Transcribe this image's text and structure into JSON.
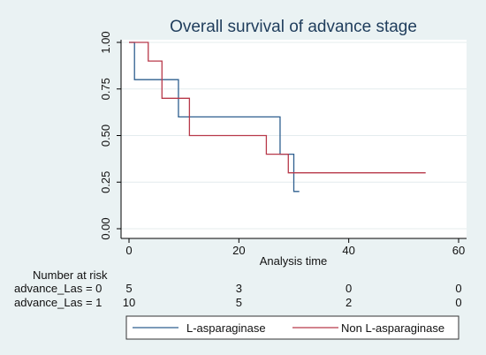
{
  "chart_data": {
    "type": "line",
    "subtype": "kaplan-meier-step",
    "title": "Overall survival of advance stage",
    "xlabel": "Analysis time",
    "ylabel": "",
    "xlim": [
      0,
      60
    ],
    "ylim": [
      0,
      1
    ],
    "x_ticks": [
      0,
      20,
      40,
      60
    ],
    "x_tick_labels": [
      "0",
      "20",
      "40",
      "60"
    ],
    "y_ticks": [
      0,
      0.25,
      0.5,
      0.75,
      1
    ],
    "y_tick_labels": [
      "0.00",
      "0.25",
      "0.50",
      "0.75",
      "1.00"
    ],
    "grid": true,
    "legend_position": "bottom",
    "series": [
      {
        "name": "L-asparaginase",
        "color": "#2e5f8f",
        "x": [
          0,
          1,
          9,
          27.5,
          30,
          31
        ],
        "y": [
          1.0,
          0.8,
          0.6,
          0.4,
          0.2,
          0.2
        ]
      },
      {
        "name": "Non L-asparaginase",
        "color": "#b8394a",
        "x": [
          0,
          3.5,
          6,
          11,
          25,
          29,
          54
        ],
        "y": [
          1.0,
          0.9,
          0.7,
          0.5,
          0.4,
          0.3,
          0.3
        ]
      }
    ],
    "risk_table": {
      "header": "Number at risk",
      "times": [
        0,
        20,
        40,
        60
      ],
      "rows": [
        {
          "label": "advance_Las = 0",
          "counts": [
            "5",
            "3",
            "0",
            "0"
          ]
        },
        {
          "label": "advance_Las = 1",
          "counts": [
            "10",
            "5",
            "2",
            "0"
          ]
        }
      ]
    }
  }
}
